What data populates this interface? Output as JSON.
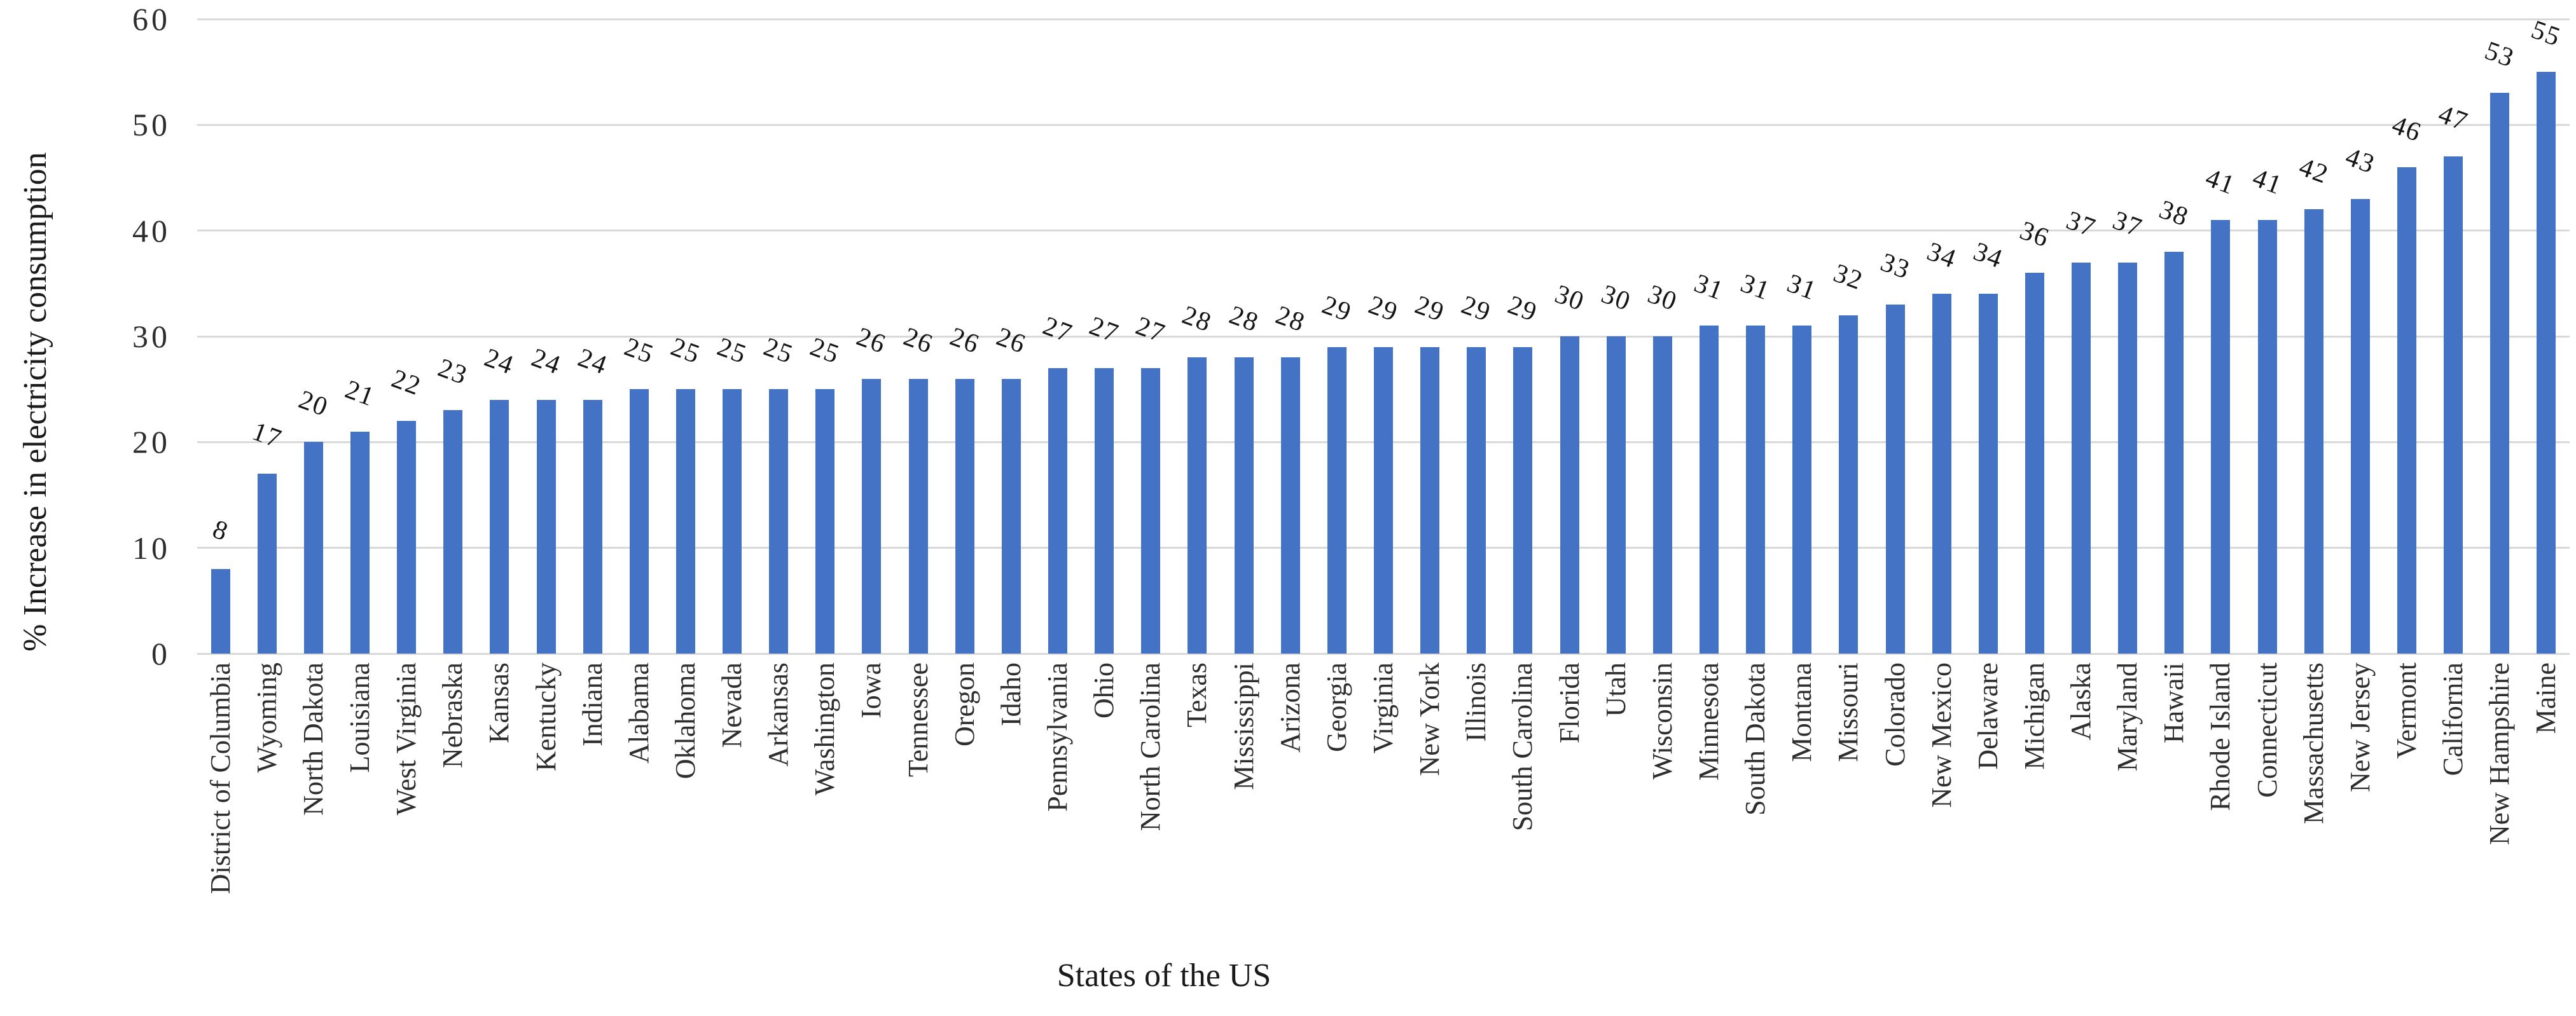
{
  "chart_data": {
    "type": "bar",
    "title": "",
    "xlabel": "States of the US",
    "ylabel": "% Increase in electricity consumption",
    "ylim": [
      0,
      60
    ],
    "yticks": [
      0,
      10,
      20,
      30,
      40,
      50,
      60
    ],
    "grid": true,
    "legend": false,
    "bar_color": "#4472C4",
    "gridline_color": "#D9D9D9",
    "axis_text_color": "#2e2e2e",
    "categories": [
      "District of Columbia",
      "Wyoming",
      "North Dakota",
      "Louisiana",
      "West Virginia",
      "Nebraska",
      "Kansas",
      "Kentucky",
      "Indiana",
      "Alabama",
      "Oklahoma",
      "Nevada",
      "Arkansas",
      "Washington",
      "Iowa",
      "Tennessee",
      "Oregon",
      "Idaho",
      "Pennsylvania",
      "Ohio",
      "North Carolina",
      "Texas",
      "Mississippi",
      "Arizona",
      "Georgia",
      "Virginia",
      "New York",
      "Illinois",
      "South Carolina",
      "Florida",
      "Utah",
      "Wisconsin",
      "Minnesota",
      "South Dakota",
      "Montana",
      "Missouri",
      "Colorado",
      "New Mexico",
      "Delaware",
      "Michigan",
      "Alaska",
      "Maryland",
      "Hawaii",
      "Rhode Island",
      "Connecticut",
      "Massachusetts",
      "New Jersey",
      "Vermont",
      "California",
      "New Hampshire",
      "Maine"
    ],
    "values": [
      8,
      17,
      20,
      21,
      22,
      23,
      24,
      24,
      24,
      25,
      25,
      25,
      25,
      25,
      26,
      26,
      26,
      26,
      27,
      27,
      27,
      28,
      28,
      28,
      29,
      29,
      29,
      29,
      29,
      30,
      30,
      30,
      31,
      31,
      31,
      32,
      33,
      34,
      34,
      36,
      37,
      37,
      38,
      41,
      41,
      42,
      43,
      46,
      47,
      53,
      55
    ]
  }
}
